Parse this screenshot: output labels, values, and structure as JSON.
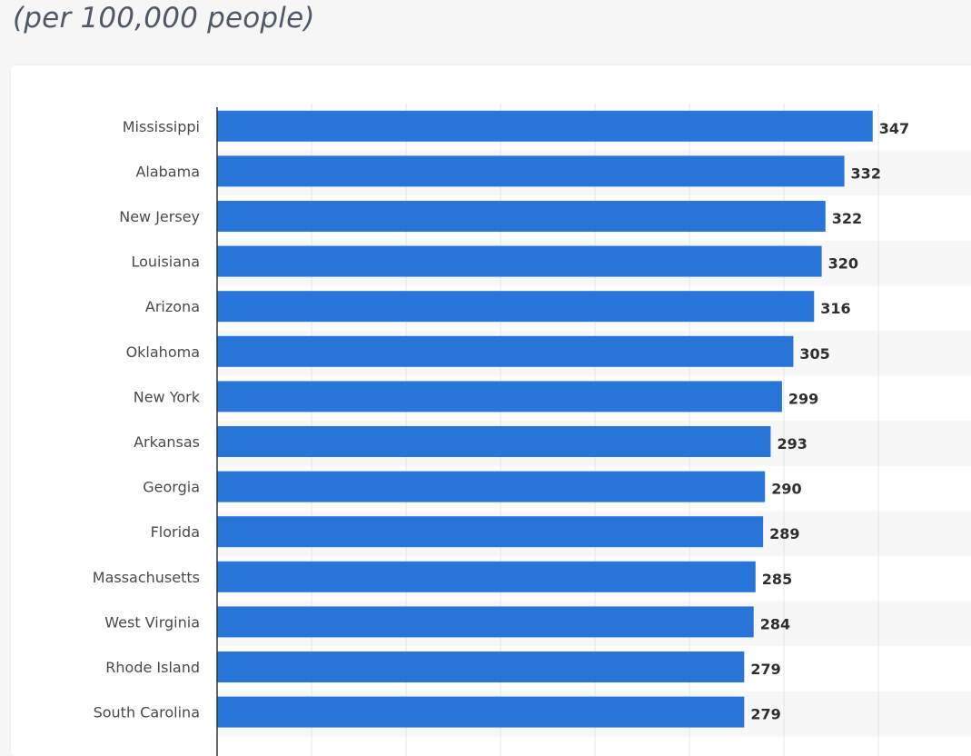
{
  "header": {
    "subtitle": "(per 100,000 people)"
  },
  "colors": {
    "bar": "#2775d9",
    "band": "#f7f7f7",
    "grid": "#e4e4e4",
    "axis": "#333333"
  },
  "chart_data": {
    "type": "bar",
    "orientation": "horizontal",
    "categories": [
      "Mississippi",
      "Alabama",
      "New Jersey",
      "Louisiana",
      "Arizona",
      "Oklahoma",
      "New York",
      "Arkansas",
      "Georgia",
      "Florida",
      "Massachusetts",
      "West Virginia",
      "Rhode Island",
      "South Carolina"
    ],
    "values": [
      347,
      332,
      322,
      320,
      316,
      305,
      299,
      293,
      290,
      289,
      285,
      284,
      279,
      279
    ],
    "value_labels": [
      "347",
      "332",
      "322",
      "320",
      "316",
      "305",
      "299",
      "293",
      "290",
      "289",
      "285",
      "284",
      "279",
      "279"
    ],
    "xlim": [
      0,
      350
    ],
    "grid": true,
    "data_labels": true
  }
}
